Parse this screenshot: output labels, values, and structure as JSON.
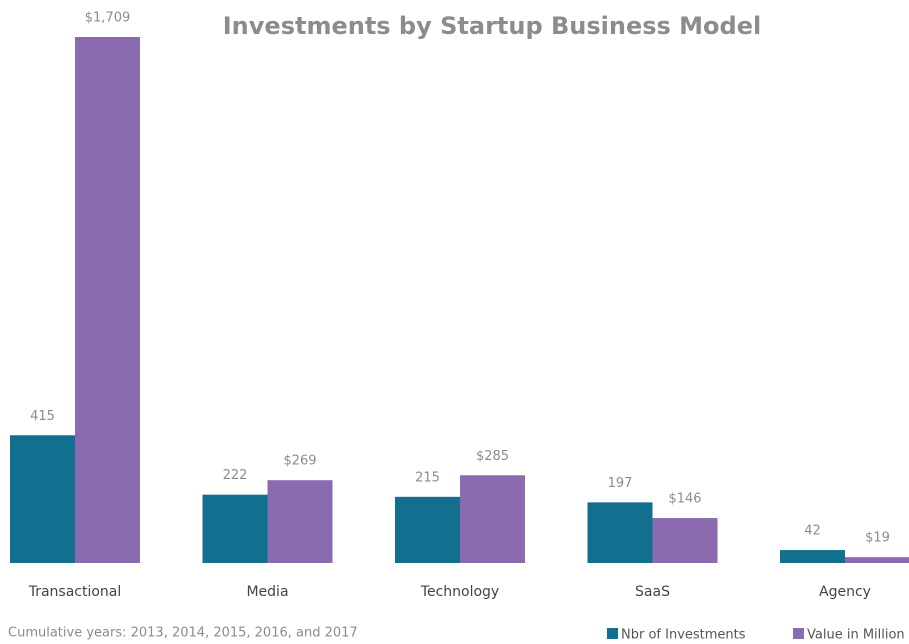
{
  "chart_data": {
    "type": "bar",
    "title": "Investments by Startup Business Model",
    "categories": [
      "Transactional",
      "Media",
      "Technology",
      "SaaS",
      "Agency"
    ],
    "series": [
      {
        "name": "Nbr of Investments",
        "color": "#136f8f",
        "values": [
          415,
          222,
          215,
          197,
          42
        ]
      },
      {
        "name": "Value in Million",
        "color": "#8a6bb0",
        "values": [
          1709,
          269,
          285,
          146,
          19
        ],
        "value_labels": [
          "$1,709",
          "$269",
          "$285",
          "$146",
          "$19"
        ]
      }
    ],
    "footnote": "Cumulative years: 2013, 2014, 2015, 2016, and 2017",
    "legend": "bottom-right"
  }
}
